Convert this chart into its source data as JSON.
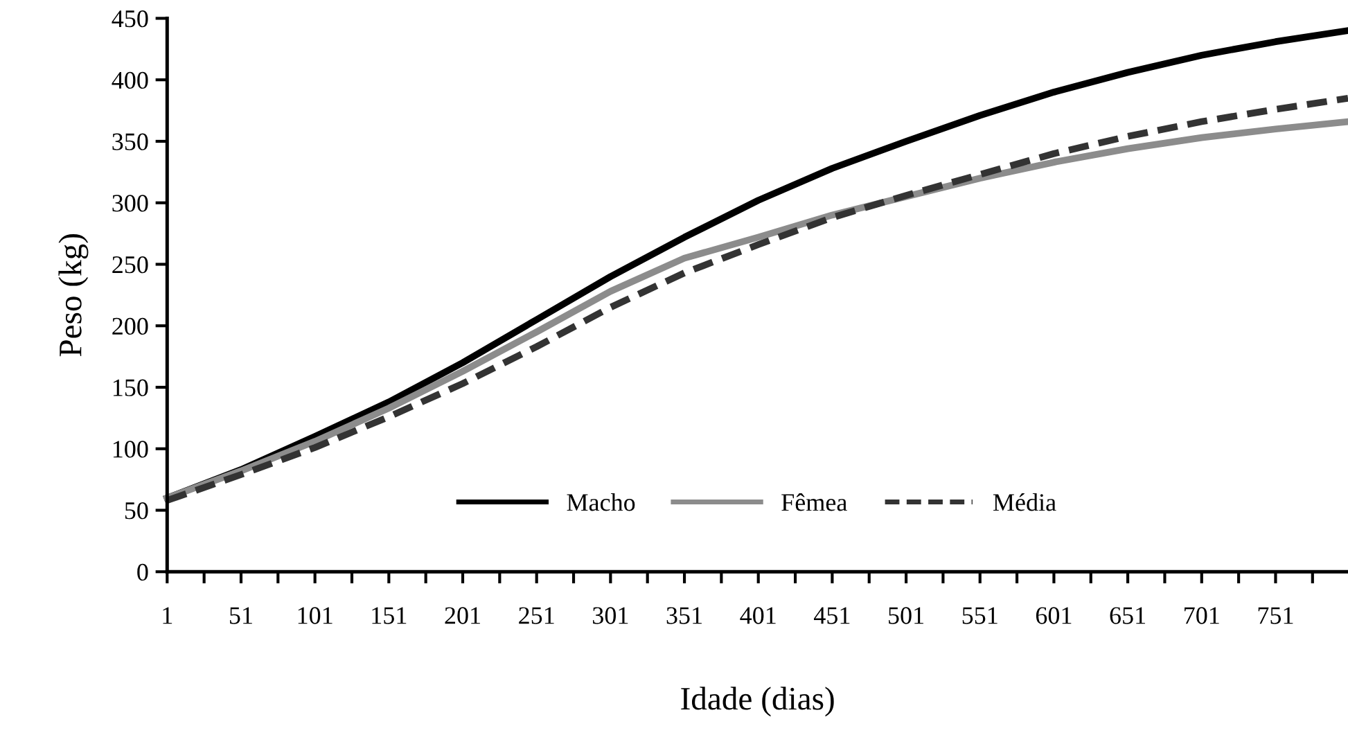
{
  "chart_data": {
    "type": "line",
    "xlabel": "Idade (dias)",
    "ylabel": "Peso (kg)",
    "x": [
      1,
      51,
      101,
      151,
      201,
      251,
      301,
      351,
      401,
      451,
      501,
      551,
      601,
      651,
      701,
      751,
      800
    ],
    "series": [
      {
        "name": "Macho",
        "color": "#000000",
        "line_style": "solid",
        "values": [
          60,
          83,
          110,
          138,
          170,
          205,
          240,
          272,
          302,
          328,
          350,
          371,
          390,
          406,
          420,
          431,
          440
        ]
      },
      {
        "name": "Fêmea",
        "color": "#8c8c8c",
        "line_style": "solid",
        "values": [
          60,
          82,
          106,
          133,
          163,
          195,
          228,
          255,
          272,
          290,
          305,
          320,
          333,
          344,
          353,
          360,
          366
        ]
      },
      {
        "name": "Média",
        "color": "#333333",
        "line_style": "dashed",
        "values": [
          58,
          79,
          101,
          126,
          153,
          183,
          215,
          243,
          266,
          288,
          306,
          323,
          340,
          354,
          366,
          376,
          385
        ]
      }
    ],
    "xlim": [
      1,
      800
    ],
    "ylim": [
      0,
      450
    ],
    "xticks": [
      1,
      {
        "value": 26,
        "label": null
      },
      51,
      {
        "value": 76,
        "label": null
      },
      101,
      {
        "value": 126,
        "label": null
      },
      151,
      {
        "value": 176,
        "label": null
      },
      201,
      {
        "value": 226,
        "label": null
      },
      251,
      {
        "value": 276,
        "label": null
      },
      301,
      {
        "value": 326,
        "label": null
      },
      351,
      {
        "value": 376,
        "label": null
      },
      401,
      {
        "value": 426,
        "label": null
      },
      451,
      {
        "value": 476,
        "label": null
      },
      501,
      {
        "value": 526,
        "label": null
      },
      551,
      {
        "value": 576,
        "label": null
      },
      601,
      {
        "value": 626,
        "label": null
      },
      651,
      {
        "value": 676,
        "label": null
      },
      701,
      {
        "value": 726,
        "label": null
      },
      751,
      {
        "value": 776,
        "label": null
      }
    ],
    "yticks": [
      0,
      50,
      100,
      150,
      200,
      250,
      300,
      350,
      400,
      450
    ],
    "grid": false,
    "legend": "bottom",
    "marker": "none"
  }
}
